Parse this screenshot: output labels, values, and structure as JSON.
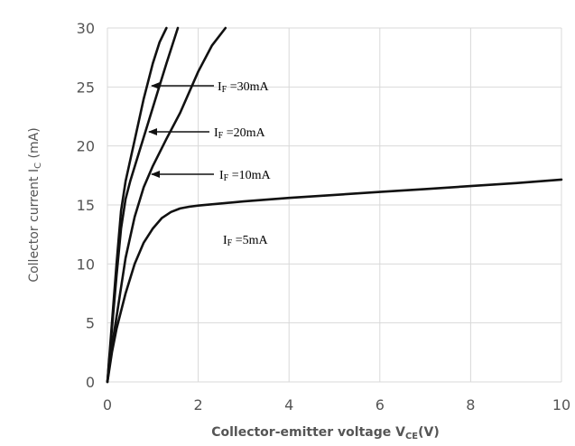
{
  "chart_data": {
    "type": "line",
    "title": "",
    "xlabel": "Collector-emitter voltage V",
    "xlabel_sub": "CE",
    "xlabel_suffix": "(V)",
    "ylabel": "Collector current I",
    "ylabel_sub": "C",
    "ylabel_suffix": " (mA)",
    "xlim": [
      0,
      10
    ],
    "ylim": [
      0,
      30
    ],
    "xticks": [
      0,
      2,
      4,
      6,
      8,
      10
    ],
    "yticks": [
      0,
      5,
      10,
      15,
      20,
      25,
      30
    ],
    "grid": true,
    "legend": "none",
    "series": [
      {
        "label_prefix": "I",
        "label_sub": "F",
        "label_value": " =5mA",
        "color": "#111111",
        "x": [
          0,
          0.1,
          0.2,
          0.4,
          0.6,
          0.8,
          1.0,
          1.2,
          1.4,
          1.6,
          1.8,
          2.0,
          3,
          4,
          5,
          6,
          7,
          8,
          9,
          10
        ],
        "y": [
          0,
          2.5,
          4.5,
          7.5,
          10,
          11.8,
          13.0,
          13.9,
          14.4,
          14.7,
          14.85,
          14.95,
          15.3,
          15.6,
          15.85,
          16.1,
          16.35,
          16.6,
          16.85,
          17.15
        ]
      },
      {
        "label_prefix": "I",
        "label_sub": "F",
        "label_value": " =10mA",
        "color": "#111111",
        "x": [
          0,
          0.1,
          0.2,
          0.4,
          0.6,
          0.8,
          1.0,
          1.3,
          1.6,
          2.0,
          2.3,
          2.6
        ],
        "y": [
          0,
          3,
          5.5,
          10.5,
          14,
          16.5,
          18.3,
          20.6,
          22.8,
          26.3,
          28.5,
          30
        ]
      },
      {
        "label_prefix": "I",
        "label_sub": "F",
        "label_value": " =20mA",
        "color": "#111111",
        "x": [
          0,
          0.1,
          0.2,
          0.3,
          0.4,
          0.5,
          0.7,
          0.9,
          1.1,
          1.3,
          1.55
        ],
        "y": [
          0,
          4.5,
          9,
          13,
          15.5,
          17,
          19.5,
          22,
          24.5,
          27,
          30
        ]
      },
      {
        "label_prefix": "I",
        "label_sub": "F",
        "label_value": " =30mA",
        "color": "#111111",
        "x": [
          0,
          0.1,
          0.2,
          0.3,
          0.4,
          0.6,
          0.8,
          1.0,
          1.15,
          1.3
        ],
        "y": [
          0,
          5,
          10,
          14.5,
          17,
          20.5,
          24,
          27,
          28.8,
          30
        ]
      }
    ]
  }
}
